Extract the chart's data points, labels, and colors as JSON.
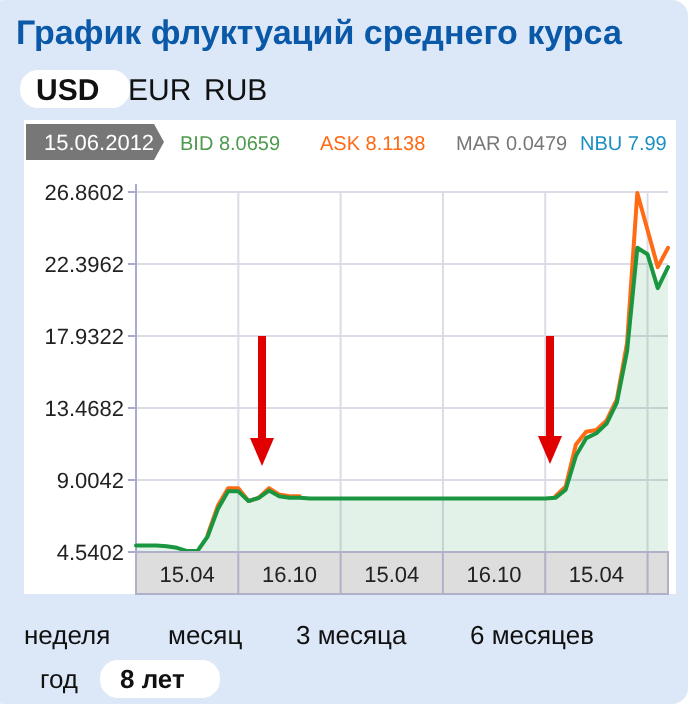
{
  "chart_data": {
    "type": "line",
    "title": "График флуктуаций среднего курса",
    "categories": [
      null,
      null,
      null,
      null,
      null,
      "15.04",
      null,
      null,
      null,
      null,
      null,
      null,
      null,
      null,
      null,
      "16.10",
      null,
      null,
      null,
      null,
      null,
      null,
      null,
      null,
      null,
      "15.04",
      null,
      null,
      null,
      null,
      null,
      null,
      null,
      null,
      null,
      "16.10",
      null,
      null,
      null,
      null,
      null,
      null,
      null,
      null,
      null,
      "15.04",
      null,
      null,
      null,
      null,
      null,
      null,
      null
    ],
    "series": [
      {
        "color": "#ff6a13",
        "values": [
          null,
          null,
          null,
          null,
          null,
          null,
          null,
          5.6,
          7.4,
          8.5,
          8.5,
          7.7,
          7.9,
          8.5,
          8.1,
          8.0,
          8.0,
          null,
          null,
          null,
          null,
          null,
          null,
          null,
          null,
          null,
          null,
          null,
          null,
          null,
          null,
          null,
          null,
          null,
          null,
          null,
          null,
          null,
          null,
          null,
          null,
          8.0,
          8.6,
          11.2,
          12.0,
          12.1,
          12.7,
          14.0,
          17.5,
          26.8,
          24.5,
          22.2,
          23.4
        ]
      },
      {
        "type": "area",
        "color": "#1a9641",
        "values": [
          4.95,
          4.95,
          4.95,
          4.9,
          4.8,
          4.6,
          4.6,
          5.5,
          7.2,
          8.3,
          8.3,
          7.7,
          7.9,
          8.35,
          8.0,
          7.9,
          7.9,
          7.85,
          7.85,
          7.85,
          7.85,
          7.85,
          7.85,
          7.85,
          7.85,
          7.85,
          7.85,
          7.85,
          7.85,
          7.85,
          7.85,
          7.85,
          7.85,
          7.85,
          7.85,
          7.85,
          7.85,
          7.85,
          7.85,
          7.85,
          7.85,
          7.9,
          8.4,
          10.5,
          11.6,
          11.9,
          12.5,
          13.8,
          17.0,
          23.4,
          23.0,
          20.9,
          22.2
        ]
      }
    ],
    "ylim": [
      4.5402,
      26.8602
    ],
    "yticks": [
      4.5402,
      9.0042,
      13.4682,
      17.9322,
      22.3962,
      26.8602
    ],
    "grid": true,
    "annotations": [
      "USD",
      "EUR",
      "RUB",
      "15.06.2012",
      "BID 8.0659",
      "ASK 8.1138",
      "MAR 0.0479",
      "NBU 7.99",
      "неделя",
      "месяц",
      "3 месяца",
      "6 месяцев",
      "год",
      "8 лет"
    ]
  }
}
